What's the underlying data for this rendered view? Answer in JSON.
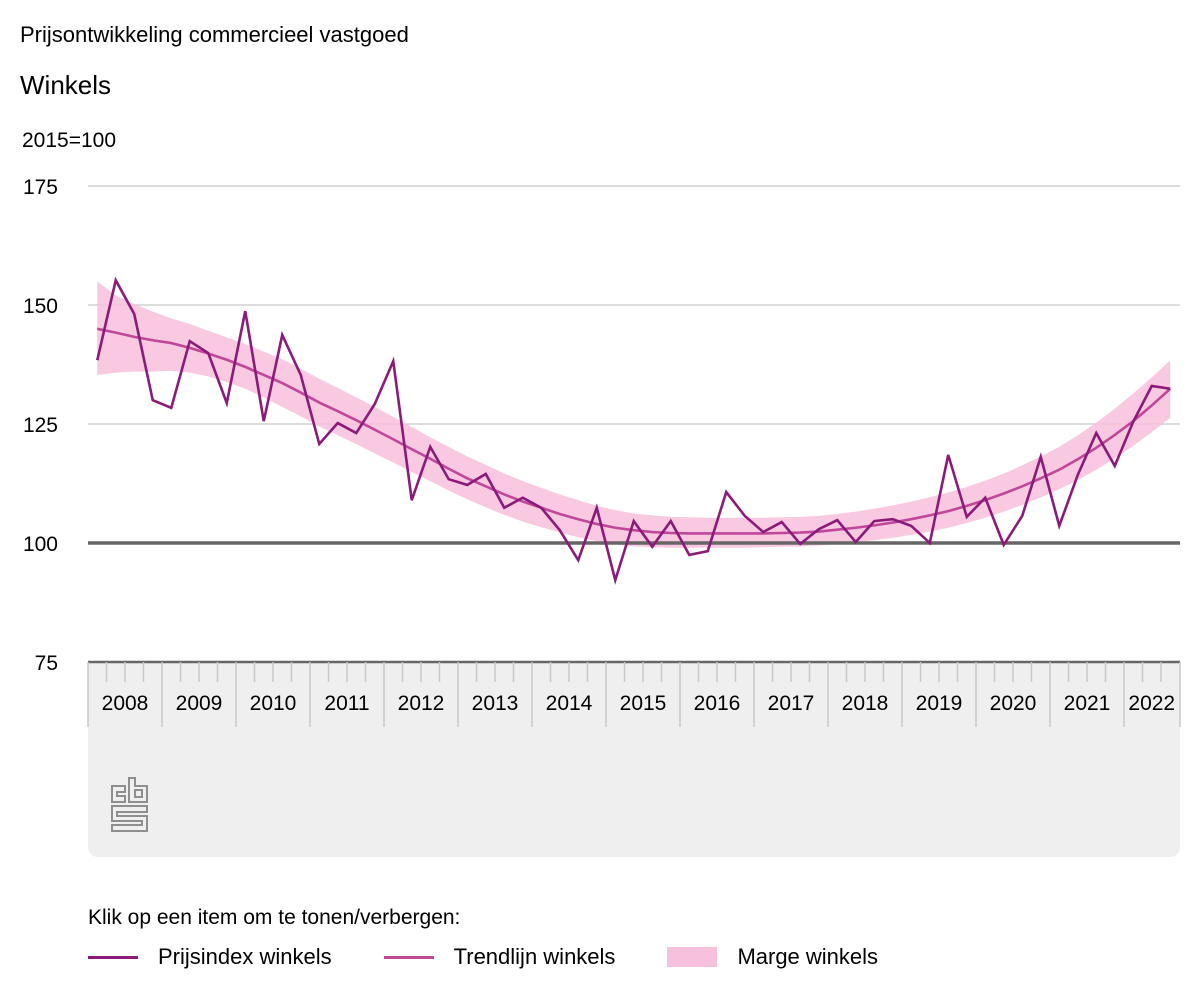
{
  "header": {
    "title": "Prijsontwikkeling commercieel vastgoed",
    "subtitle": "Winkels",
    "unit": "2015=100"
  },
  "legend": {
    "hint": "Klik op een item om te tonen/verbergen:",
    "items": [
      {
        "label": "Prijsindex winkels",
        "type": "line",
        "color": "#8B1A7A"
      },
      {
        "label": "Trendlijn winkels",
        "type": "line",
        "color": "#C0479A"
      },
      {
        "label": "Marge winkels",
        "type": "area",
        "color": "#F7C0DC"
      }
    ]
  },
  "logo": {
    "icon": "cbs-logo-icon"
  },
  "chart_data": {
    "type": "line",
    "title": "Prijsontwikkeling commercieel vastgoed",
    "subtitle": "Winkels",
    "ylabel": "2015=100",
    "ylim": [
      75,
      175
    ],
    "yticks": [
      75,
      100,
      125,
      150,
      175
    ],
    "reference_line": 100,
    "grid": true,
    "legend_position": "bottom-left",
    "x_start": "2008Q1",
    "x_end": "2022Q3",
    "year_labels": [
      "2008",
      "2009",
      "2010",
      "2011",
      "2012",
      "2013",
      "2014",
      "2015",
      "2016",
      "2017",
      "2018",
      "2019",
      "2020",
      "2021",
      "2022"
    ],
    "series": [
      {
        "name": "Prijsindex winkels",
        "values": [
          138.4,
          155.2,
          148.1,
          130.0,
          128.4,
          142.4,
          139.9,
          129.4,
          148.7,
          125.6,
          143.7,
          135.3,
          120.8,
          125.2,
          123.1,
          129.2,
          138.2,
          109.0,
          120.2,
          113.4,
          112.2,
          114.5,
          107.4,
          109.5,
          107.4,
          102.7,
          96.4,
          107.4,
          92.2,
          104.6,
          99.2,
          104.6,
          97.5,
          98.3,
          110.7,
          105.7,
          102.3,
          104.4,
          99.8,
          102.9,
          104.8,
          100.2,
          104.6,
          105.0,
          103.6,
          100.0,
          118.5,
          105.5,
          109.5,
          99.6,
          105.7,
          118.1,
          103.6,
          114.3,
          123.1,
          116.2,
          125.5,
          133.0,
          132.4
        ]
      },
      {
        "name": "Trendlijn winkels",
        "values": [
          145.0,
          144.2,
          143.3,
          142.6,
          142.0,
          141.0,
          139.8,
          138.5,
          137.0,
          135.3,
          133.6,
          131.6,
          129.5,
          127.7,
          125.8,
          123.8,
          121.8,
          119.7,
          117.7,
          115.6,
          113.6,
          111.9,
          110.2,
          108.7,
          107.4,
          106.1,
          105.0,
          104.0,
          103.2,
          102.7,
          102.3,
          102.1,
          102.0,
          102.0,
          102.0,
          102.0,
          102.0,
          102.1,
          102.2,
          102.4,
          102.8,
          103.2,
          103.7,
          104.3,
          105.0,
          105.8,
          106.7,
          107.8,
          109.0,
          110.4,
          111.9,
          113.6,
          115.4,
          117.6,
          120.0,
          122.7,
          125.6,
          128.9,
          132.4
        ]
      },
      {
        "name": "Marge winkels",
        "type": "area",
        "upper": [
          155.0,
          152.0,
          150.2,
          148.6,
          147.2,
          146.0,
          144.6,
          143.2,
          141.8,
          140.2,
          138.6,
          136.6,
          134.5,
          132.6,
          130.6,
          128.6,
          126.5,
          124.4,
          122.2,
          120.2,
          118.2,
          116.4,
          114.6,
          113.0,
          111.6,
          110.2,
          109.0,
          107.8,
          106.9,
          106.2,
          105.8,
          105.5,
          105.4,
          105.3,
          105.3,
          105.3,
          105.3,
          105.4,
          105.5,
          105.7,
          106.1,
          106.6,
          107.2,
          107.9,
          108.7,
          109.6,
          110.6,
          111.8,
          113.1,
          114.6,
          116.3,
          118.2,
          120.2,
          122.6,
          125.3,
          128.2,
          131.4,
          134.8,
          138.4
        ],
        "lower": [
          135.3,
          135.8,
          136.0,
          136.0,
          136.2,
          135.8,
          135.0,
          133.8,
          132.4,
          130.6,
          128.6,
          126.6,
          124.5,
          122.6,
          120.8,
          118.8,
          116.9,
          114.9,
          113.0,
          111.0,
          109.2,
          107.5,
          105.9,
          104.5,
          103.3,
          102.2,
          101.2,
          100.4,
          99.7,
          99.3,
          99.1,
          99.0,
          99.0,
          99.0,
          99.0,
          99.0,
          99.1,
          99.2,
          99.3,
          99.5,
          99.8,
          100.2,
          100.6,
          101.1,
          101.7,
          102.4,
          103.2,
          104.2,
          105.3,
          106.6,
          108.0,
          109.6,
          111.3,
          113.2,
          115.4,
          117.8,
          120.4,
          123.3,
          126.3
        ]
      }
    ]
  }
}
